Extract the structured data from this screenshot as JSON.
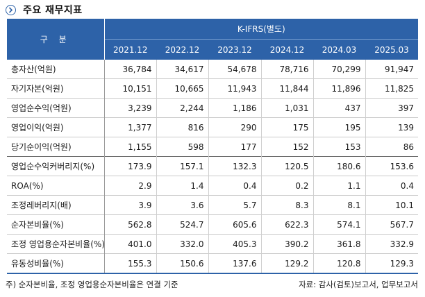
{
  "title": "주요 재무지표",
  "header": {
    "row_label": "구 분",
    "group_label": "K-IFRS(별도)",
    "periods": [
      "2021.12",
      "2022.12",
      "2023.12",
      "2024.12",
      "2024.03",
      "2025.03"
    ]
  },
  "rows": [
    {
      "label": "총자산(억원)",
      "values": [
        "36,784",
        "34,617",
        "54,678",
        "78,716",
        "70,299",
        "91,947"
      ]
    },
    {
      "label": "자기자본(억원)",
      "values": [
        "10,151",
        "10,665",
        "11,943",
        "11,844",
        "11,896",
        "11,825"
      ]
    },
    {
      "label": "영업순수익(억원)",
      "values": [
        "3,239",
        "2,244",
        "1,186",
        "1,031",
        "437",
        "397"
      ]
    },
    {
      "label": "영업이익(억원)",
      "values": [
        "1,377",
        "816",
        "290",
        "175",
        "195",
        "139"
      ]
    },
    {
      "label": "당기순이익(억원)",
      "values": [
        "1,155",
        "598",
        "177",
        "152",
        "153",
        "86"
      ]
    },
    {
      "label": "영업순수익커버리지(%)",
      "values": [
        "173.9",
        "157.1",
        "132.3",
        "120.5",
        "180.6",
        "153.6"
      ]
    },
    {
      "label": "ROA(%)",
      "values": [
        "2.9",
        "1.4",
        "0.4",
        "0.2",
        "1.1",
        "0.4"
      ]
    },
    {
      "label": "조정레버리지(배)",
      "values": [
        "3.9",
        "3.6",
        "5.7",
        "8.3",
        "8.1",
        "10.1"
      ]
    },
    {
      "label": "순자본비율(%)",
      "values": [
        "562.8",
        "524.7",
        "605.6",
        "622.3",
        "574.1",
        "567.7"
      ]
    },
    {
      "label": "조정 영업용순자본비율(%)",
      "values": [
        "401.0",
        "332.0",
        "405.3",
        "390.2",
        "361.8",
        "332.9"
      ]
    },
    {
      "label": "유동성비율(%)",
      "values": [
        "155.3",
        "150.6",
        "137.6",
        "129.2",
        "120.8",
        "129.3"
      ]
    }
  ],
  "footnote": "주) 순자본비율, 조정 영업용순자본비율은 연결 기준",
  "source": "자료: 감사(검토)보고서, 업무보고서",
  "colors": {
    "header_bg": "#2d62a8",
    "header_text": "#ffffff"
  },
  "icons": {
    "title_bullet": "chevron-right-circle-icon"
  }
}
